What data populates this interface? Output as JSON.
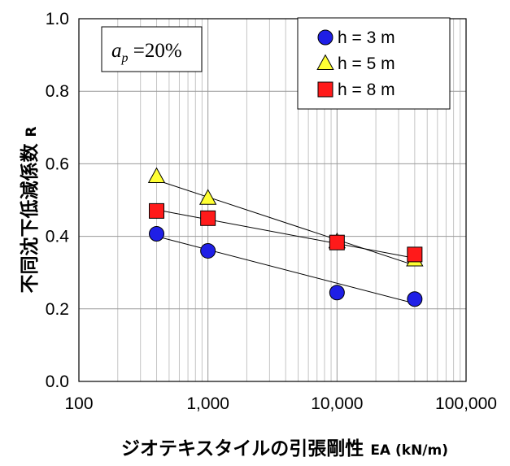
{
  "chart_data": {
    "type": "scatter",
    "x_scale": "log",
    "xlim": [
      100,
      100000
    ],
    "ylim": [
      0.0,
      1.0
    ],
    "x_ticks": [
      100,
      1000,
      10000,
      100000
    ],
    "x_tick_labels": [
      "100",
      "1,000",
      "10,000",
      "100,000"
    ],
    "y_ticks": [
      0.0,
      0.2,
      0.4,
      0.6,
      0.8,
      1.0
    ],
    "y_tick_labels": [
      "0.0",
      "0.2",
      "0.4",
      "0.6",
      "0.8",
      "1.0"
    ],
    "xlabel": "ジオテキスタイルの引張剛性",
    "xlabel_suffix": "EA (kN/m)",
    "ylabel": "不同沈下低減係数",
    "ylabel_suffix": "R",
    "annotation": {
      "var": "a",
      "sub": "p",
      "rest": " =20%"
    },
    "grid": true,
    "legend_position": "top-right",
    "series": [
      {
        "name": "h = 3  m",
        "marker": "circle",
        "color": "#1f1fe6",
        "points": [
          [
            400,
            0.407
          ],
          [
            1000,
            0.36
          ],
          [
            10000,
            0.245
          ],
          [
            40000,
            0.227
          ]
        ],
        "trend": [
          [
            400,
            0.4
          ],
          [
            40000,
            0.215
          ]
        ]
      },
      {
        "name": "h = 5  m",
        "marker": "triangle",
        "color": "#ffff33",
        "points": [
          [
            400,
            0.565
          ],
          [
            1000,
            0.505
          ],
          [
            10000,
            0.385
          ],
          [
            40000,
            0.335
          ]
        ],
        "trend": [
          [
            400,
            0.555
          ],
          [
            40000,
            0.32
          ]
        ]
      },
      {
        "name": "h = 8  m",
        "marker": "square",
        "color": "#ff1a1a",
        "points": [
          [
            400,
            0.47
          ],
          [
            1000,
            0.45
          ],
          [
            10000,
            0.383
          ],
          [
            40000,
            0.35
          ]
        ],
        "trend": [
          [
            400,
            0.473
          ],
          [
            40000,
            0.34
          ]
        ]
      }
    ]
  }
}
